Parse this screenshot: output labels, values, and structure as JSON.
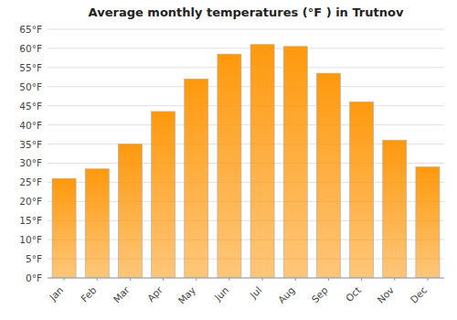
{
  "chart_data": {
    "type": "bar",
    "title": "Average monthly temperatures (°F ) in Trutnov",
    "categories": [
      "Jan",
      "Feb",
      "Mar",
      "Apr",
      "May",
      "Jun",
      "Jul",
      "Aug",
      "Sep",
      "Oct",
      "Nov",
      "Dec"
    ],
    "values": [
      26,
      28.5,
      35,
      43.5,
      52,
      58.5,
      61,
      60.5,
      53.5,
      46,
      36,
      29
    ],
    "color": "#ff990d",
    "ylim": [
      0,
      65
    ],
    "yticks": [
      {
        "value": 0,
        "label": "0°F"
      },
      {
        "value": 5,
        "label": "5°F"
      },
      {
        "value": 10,
        "label": "10°F"
      },
      {
        "value": 15,
        "label": "15°F"
      },
      {
        "value": 20,
        "label": "20°F"
      },
      {
        "value": 25,
        "label": "25°F"
      },
      {
        "value": 30,
        "label": "30°F"
      },
      {
        "value": 35,
        "label": "35°F"
      },
      {
        "value": 40,
        "label": "40°F"
      },
      {
        "value": 45,
        "label": "45°F"
      },
      {
        "value": 50,
        "label": "50°F"
      },
      {
        "value": 55,
        "label": "55°F"
      },
      {
        "value": 60,
        "label": "60°F"
      },
      {
        "value": 65,
        "label": "65°F"
      }
    ],
    "grid": true
  }
}
